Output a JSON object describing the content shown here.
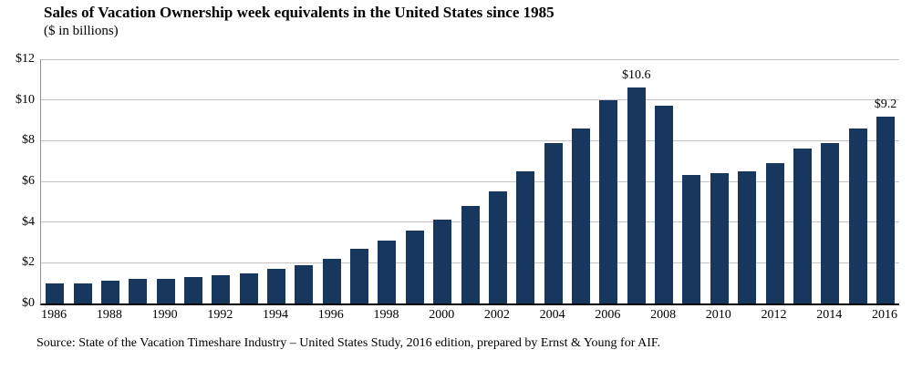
{
  "title": "Sales of Vacation Ownership week equivalents in the United States since 1985",
  "subtitle": "($ in billions)",
  "source": "Source: State of the Vacation Timeshare Industry – United States Study, 2016 edition,  prepared by Ernst & Young for AIF.",
  "colors": {
    "bar": "#17375e",
    "gridline": "#c4c4c8",
    "y_axis_line": "#8e8e94",
    "x_axis_line": "#000000",
    "text": "#000000"
  },
  "chart_data": {
    "type": "bar",
    "title": "Sales of Vacation Ownership week equivalents in the United States since 1985",
    "subtitle": "($ in billions)",
    "xlabel": "",
    "ylabel": "$ in billions",
    "ylim": [
      0,
      12
    ],
    "grid": true,
    "categories": [
      1986,
      1987,
      1988,
      1989,
      1990,
      1991,
      1992,
      1993,
      1994,
      1995,
      1996,
      1997,
      1998,
      1999,
      2000,
      2001,
      2002,
      2003,
      2004,
      2005,
      2006,
      2007,
      2008,
      2009,
      2010,
      2011,
      2012,
      2013,
      2014,
      2015,
      2016
    ],
    "values": [
      1.0,
      1.0,
      1.1,
      1.2,
      1.2,
      1.3,
      1.4,
      1.5,
      1.7,
      1.9,
      2.2,
      2.7,
      3.1,
      3.6,
      4.1,
      4.8,
      5.5,
      6.5,
      7.9,
      8.6,
      10.0,
      10.6,
      9.7,
      6.3,
      6.4,
      6.5,
      6.9,
      7.6,
      7.9,
      8.6,
      9.2
    ],
    "y_ticks": [
      {
        "value": 0,
        "label": "$0"
      },
      {
        "value": 2,
        "label": "$2"
      },
      {
        "value": 4,
        "label": "$4"
      },
      {
        "value": 6,
        "label": "$6"
      },
      {
        "value": 8,
        "label": "$8"
      },
      {
        "value": 10,
        "label": "$10"
      },
      {
        "value": 12,
        "label": "$12"
      }
    ],
    "x_tick_years": [
      1986,
      1988,
      1990,
      1992,
      1994,
      1996,
      1998,
      2000,
      2002,
      2004,
      2006,
      2008,
      2010,
      2012,
      2014,
      2016
    ],
    "annotations": [
      {
        "year": 2007,
        "label": "$10.6"
      },
      {
        "year": 2016,
        "label": "$9.2"
      }
    ]
  }
}
